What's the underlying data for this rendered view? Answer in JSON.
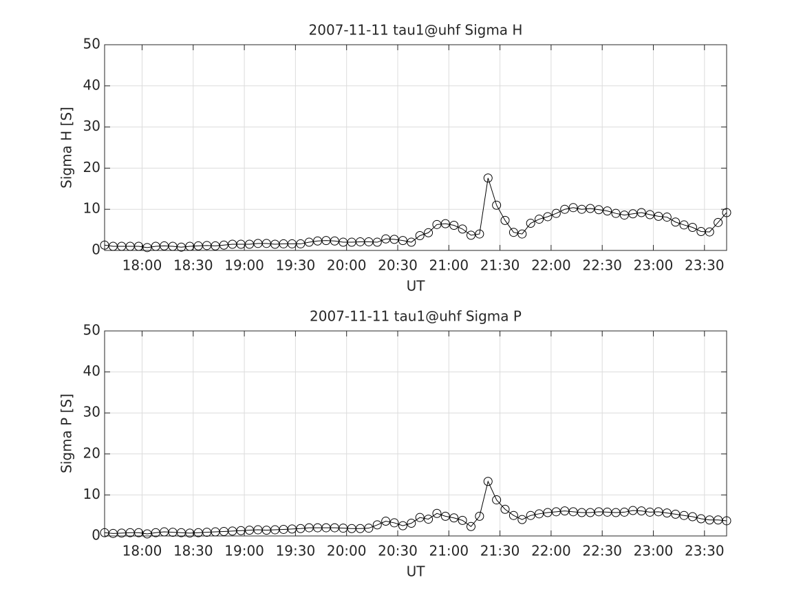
{
  "chart_data": [
    {
      "type": "line",
      "title": "2007-11-11  tau1@uhf Sigma H",
      "xlabel": "UT",
      "ylabel": "Sigma H [S]",
      "x": [
        "17:38",
        "17:43",
        "17:48",
        "17:53",
        "17:58",
        "18:03",
        "18:08",
        "18:13",
        "18:18",
        "18:23",
        "18:28",
        "18:33",
        "18:38",
        "18:43",
        "18:48",
        "18:53",
        "18:58",
        "19:03",
        "19:08",
        "19:13",
        "19:18",
        "19:23",
        "19:28",
        "19:33",
        "19:38",
        "19:43",
        "19:48",
        "19:53",
        "19:58",
        "20:03",
        "20:08",
        "20:13",
        "20:18",
        "20:23",
        "20:28",
        "20:33",
        "20:38",
        "20:43",
        "20:48",
        "20:53",
        "20:58",
        "21:03",
        "21:08",
        "21:13",
        "21:18",
        "21:23",
        "21:28",
        "21:33",
        "21:38",
        "21:43",
        "21:48",
        "21:53",
        "21:58",
        "22:03",
        "22:08",
        "22:13",
        "22:18",
        "22:23",
        "22:28",
        "22:33",
        "22:38",
        "22:43",
        "22:48",
        "22:53",
        "22:58",
        "23:03",
        "23:08",
        "23:13",
        "23:18",
        "23:23",
        "23:28",
        "23:33",
        "23:38",
        "23:43"
      ],
      "values": [
        1.3,
        1.0,
        1.0,
        1.0,
        1.0,
        0.7,
        1.0,
        1.1,
        1.0,
        0.8,
        1.0,
        1.1,
        1.2,
        1.1,
        1.3,
        1.5,
        1.5,
        1.5,
        1.7,
        1.7,
        1.5,
        1.6,
        1.6,
        1.6,
        2.0,
        2.3,
        2.4,
        2.3,
        2.0,
        2.0,
        2.1,
        2.1,
        2.0,
        2.8,
        2.7,
        2.4,
        2.0,
        3.6,
        4.3,
        6.3,
        6.5,
        6.1,
        5.2,
        3.7,
        4.0,
        17.6,
        11.0,
        7.3,
        4.4,
        4.0,
        6.6,
        7.6,
        8.2,
        9.0,
        10.0,
        10.4,
        10.0,
        10.2,
        9.9,
        9.6,
        9.0,
        8.6,
        8.9,
        9.2,
        8.7,
        8.3,
        8.1,
        6.9,
        6.2,
        5.6,
        4.6,
        4.5,
        6.8,
        9.2
      ],
      "color": "#000000",
      "xlim": [
        "17:38",
        "23:43"
      ],
      "xticks": [
        "18:00",
        "18:30",
        "19:00",
        "19:30",
        "20:00",
        "20:30",
        "21:00",
        "21:30",
        "22:00",
        "22:30",
        "23:00",
        "23:30"
      ],
      "ylim": [
        0,
        50
      ],
      "yticks": [
        0,
        10,
        20,
        30,
        40,
        50
      ],
      "grid": true
    },
    {
      "type": "line",
      "title": "2007-11-11  tau1@uhf Sigma P",
      "xlabel": "UT",
      "ylabel": "Sigma P [S]",
      "x": [
        "17:38",
        "17:43",
        "17:48",
        "17:53",
        "17:58",
        "18:03",
        "18:08",
        "18:13",
        "18:18",
        "18:23",
        "18:28",
        "18:33",
        "18:38",
        "18:43",
        "18:48",
        "18:53",
        "18:58",
        "19:03",
        "19:08",
        "19:13",
        "19:18",
        "19:23",
        "19:28",
        "19:33",
        "19:38",
        "19:43",
        "19:48",
        "19:53",
        "19:58",
        "20:03",
        "20:08",
        "20:13",
        "20:18",
        "20:23",
        "20:28",
        "20:33",
        "20:38",
        "20:43",
        "20:48",
        "20:53",
        "20:58",
        "21:03",
        "21:08",
        "21:13",
        "21:18",
        "21:23",
        "21:28",
        "21:33",
        "21:38",
        "21:43",
        "21:48",
        "21:53",
        "21:58",
        "22:03",
        "22:08",
        "22:13",
        "22:18",
        "22:23",
        "22:28",
        "22:33",
        "22:38",
        "22:43",
        "22:48",
        "22:53",
        "22:58",
        "23:03",
        "23:08",
        "23:13",
        "23:18",
        "23:23",
        "23:28",
        "23:33",
        "23:38",
        "23:43"
      ],
      "values": [
        0.8,
        0.6,
        0.7,
        0.8,
        0.8,
        0.5,
        0.8,
        1.0,
        0.9,
        0.8,
        0.7,
        0.8,
        0.9,
        1.0,
        1.1,
        1.2,
        1.3,
        1.4,
        1.5,
        1.4,
        1.5,
        1.6,
        1.7,
        1.8,
        2.0,
        2.0,
        2.0,
        2.0,
        1.9,
        1.8,
        1.8,
        1.9,
        2.7,
        3.6,
        3.2,
        2.5,
        3.1,
        4.5,
        4.1,
        5.5,
        4.8,
        4.4,
        3.8,
        2.3,
        4.8,
        13.3,
        8.8,
        6.5,
        5.0,
        4.0,
        5.0,
        5.4,
        5.7,
        5.9,
        6.1,
        5.9,
        5.7,
        5.7,
        5.9,
        5.8,
        5.7,
        5.8,
        6.2,
        6.1,
        5.8,
        5.9,
        5.6,
        5.3,
        5.0,
        4.7,
        4.2,
        3.9,
        3.9,
        3.7
      ],
      "color": "#000000",
      "xlim": [
        "17:38",
        "23:43"
      ],
      "xticks": [
        "18:00",
        "18:30",
        "19:00",
        "19:30",
        "20:00",
        "20:30",
        "21:00",
        "21:30",
        "22:00",
        "22:30",
        "23:00",
        "23:30"
      ],
      "ylim": [
        0,
        50
      ],
      "yticks": [
        0,
        10,
        20,
        30,
        40,
        50
      ],
      "grid": true
    }
  ]
}
